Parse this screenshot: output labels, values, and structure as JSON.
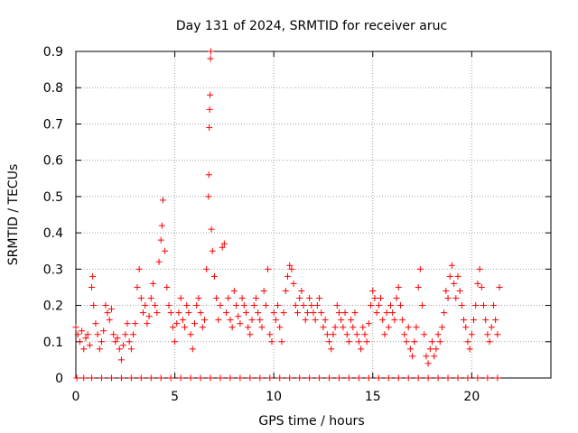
{
  "chart_data": {
    "type": "scatter",
    "title": "Day 131 of 2024, SRMTID for receiver aruc",
    "xlabel": "GPS time / hours",
    "ylabel": "SRMTID / TECUs",
    "xlim": [
      0,
      24
    ],
    "ylim": [
      0,
      0.9
    ],
    "xticks": [
      0,
      5,
      10,
      15,
      20
    ],
    "xtick_labels": [
      "0",
      "5",
      "10",
      "15",
      "20"
    ],
    "yticks": [
      0,
      0.1,
      0.2,
      0.3,
      0.4,
      0.5,
      0.6,
      0.7,
      0.8,
      0.9
    ],
    "ytick_labels": [
      "0",
      "0.1",
      "0.2",
      "0.3",
      "0.4",
      "0.5",
      "0.6",
      "0.7",
      "0.8",
      "0.9"
    ],
    "grid": true,
    "marker": "+",
    "series": [
      {
        "name": "SRMTID",
        "color": "#ff0000",
        "points": [
          [
            0.0,
            0.14
          ],
          [
            0.1,
            0.12
          ],
          [
            0.2,
            0.1
          ],
          [
            0.3,
            0.13
          ],
          [
            0.4,
            0.08
          ],
          [
            0.5,
            0.11
          ],
          [
            0.6,
            0.12
          ],
          [
            0.7,
            0.09
          ],
          [
            0.8,
            0.25
          ],
          [
            0.85,
            0.28
          ],
          [
            0.9,
            0.2
          ],
          [
            1.0,
            0.15
          ],
          [
            1.1,
            0.12
          ],
          [
            1.2,
            0.08
          ],
          [
            1.3,
            0.1
          ],
          [
            1.4,
            0.13
          ],
          [
            1.5,
            0.2
          ],
          [
            1.6,
            0.18
          ],
          [
            1.7,
            0.16
          ],
          [
            1.8,
            0.19
          ],
          [
            1.9,
            0.12
          ],
          [
            2.0,
            0.1
          ],
          [
            2.1,
            0.11
          ],
          [
            2.2,
            0.08
          ],
          [
            2.3,
            0.05
          ],
          [
            2.4,
            0.09
          ],
          [
            2.5,
            0.12
          ],
          [
            2.6,
            0.15
          ],
          [
            2.7,
            0.1
          ],
          [
            2.8,
            0.08
          ],
          [
            2.9,
            0.12
          ],
          [
            3.0,
            0.15
          ],
          [
            3.1,
            0.25
          ],
          [
            3.2,
            0.3
          ],
          [
            3.3,
            0.22
          ],
          [
            3.4,
            0.18
          ],
          [
            3.5,
            0.2
          ],
          [
            3.6,
            0.15
          ],
          [
            3.7,
            0.17
          ],
          [
            3.8,
            0.22
          ],
          [
            3.9,
            0.26
          ],
          [
            4.0,
            0.2
          ],
          [
            4.1,
            0.18
          ],
          [
            4.2,
            0.32
          ],
          [
            4.3,
            0.38
          ],
          [
            4.35,
            0.42
          ],
          [
            4.4,
            0.49
          ],
          [
            4.5,
            0.35
          ],
          [
            4.6,
            0.25
          ],
          [
            4.7,
            0.2
          ],
          [
            4.8,
            0.18
          ],
          [
            4.9,
            0.14
          ],
          [
            5.0,
            0.1
          ],
          [
            5.1,
            0.15
          ],
          [
            5.2,
            0.18
          ],
          [
            5.3,
            0.22
          ],
          [
            5.4,
            0.16
          ],
          [
            5.5,
            0.14
          ],
          [
            5.6,
            0.2
          ],
          [
            5.7,
            0.18
          ],
          [
            5.8,
            0.12
          ],
          [
            5.9,
            0.08
          ],
          [
            6.0,
            0.15
          ],
          [
            6.1,
            0.2
          ],
          [
            6.2,
            0.22
          ],
          [
            6.3,
            0.18
          ],
          [
            6.4,
            0.14
          ],
          [
            6.5,
            0.16
          ],
          [
            6.6,
            0.3
          ],
          [
            6.7,
            0.5
          ],
          [
            6.72,
            0.56
          ],
          [
            6.74,
            0.69
          ],
          [
            6.76,
            0.74
          ],
          [
            6.78,
            0.78
          ],
          [
            6.8,
            0.88
          ],
          [
            6.82,
            0.9
          ],
          [
            6.85,
            0.41
          ],
          [
            6.9,
            0.35
          ],
          [
            7.0,
            0.28
          ],
          [
            7.1,
            0.22
          ],
          [
            7.2,
            0.16
          ],
          [
            7.3,
            0.2
          ],
          [
            7.4,
            0.36
          ],
          [
            7.5,
            0.37
          ],
          [
            7.6,
            0.18
          ],
          [
            7.7,
            0.22
          ],
          [
            7.8,
            0.16
          ],
          [
            7.9,
            0.14
          ],
          [
            8.0,
            0.24
          ],
          [
            8.1,
            0.2
          ],
          [
            8.2,
            0.17
          ],
          [
            8.3,
            0.15
          ],
          [
            8.4,
            0.22
          ],
          [
            8.5,
            0.2
          ],
          [
            8.6,
            0.18
          ],
          [
            8.7,
            0.14
          ],
          [
            8.8,
            0.12
          ],
          [
            8.9,
            0.16
          ],
          [
            9.0,
            0.2
          ],
          [
            9.1,
            0.22
          ],
          [
            9.2,
            0.18
          ],
          [
            9.3,
            0.16
          ],
          [
            9.4,
            0.14
          ],
          [
            9.5,
            0.24
          ],
          [
            9.6,
            0.2
          ],
          [
            9.7,
            0.3
          ],
          [
            9.8,
            0.12
          ],
          [
            9.9,
            0.1
          ],
          [
            10.0,
            0.18
          ],
          [
            10.1,
            0.16
          ],
          [
            10.2,
            0.2
          ],
          [
            10.3,
            0.14
          ],
          [
            10.4,
            0.1
          ],
          [
            10.5,
            0.18
          ],
          [
            10.6,
            0.24
          ],
          [
            10.7,
            0.28
          ],
          [
            10.8,
            0.31
          ],
          [
            10.9,
            0.3
          ],
          [
            11.0,
            0.26
          ],
          [
            11.1,
            0.2
          ],
          [
            11.2,
            0.18
          ],
          [
            11.3,
            0.22
          ],
          [
            11.4,
            0.24
          ],
          [
            11.5,
            0.2
          ],
          [
            11.6,
            0.16
          ],
          [
            11.7,
            0.18
          ],
          [
            11.8,
            0.22
          ],
          [
            11.9,
            0.2
          ],
          [
            12.0,
            0.18
          ],
          [
            12.1,
            0.16
          ],
          [
            12.2,
            0.2
          ],
          [
            12.3,
            0.22
          ],
          [
            12.4,
            0.18
          ],
          [
            12.5,
            0.14
          ],
          [
            12.6,
            0.16
          ],
          [
            12.7,
            0.12
          ],
          [
            12.8,
            0.1
          ],
          [
            12.9,
            0.08
          ],
          [
            13.0,
            0.12
          ],
          [
            13.1,
            0.14
          ],
          [
            13.2,
            0.2
          ],
          [
            13.3,
            0.18
          ],
          [
            13.4,
            0.16
          ],
          [
            13.5,
            0.14
          ],
          [
            13.6,
            0.18
          ],
          [
            13.7,
            0.12
          ],
          [
            13.8,
            0.1
          ],
          [
            13.9,
            0.16
          ],
          [
            14.0,
            0.14
          ],
          [
            14.1,
            0.18
          ],
          [
            14.2,
            0.12
          ],
          [
            14.3,
            0.1
          ],
          [
            14.4,
            0.08
          ],
          [
            14.5,
            0.14
          ],
          [
            14.6,
            0.12
          ],
          [
            14.7,
            0.1
          ],
          [
            14.8,
            0.15
          ],
          [
            14.9,
            0.2
          ],
          [
            15.0,
            0.24
          ],
          [
            15.1,
            0.22
          ],
          [
            15.2,
            0.18
          ],
          [
            15.3,
            0.2
          ],
          [
            15.4,
            0.22
          ],
          [
            15.5,
            0.16
          ],
          [
            15.6,
            0.12
          ],
          [
            15.7,
            0.18
          ],
          [
            15.8,
            0.14
          ],
          [
            15.9,
            0.2
          ],
          [
            16.0,
            0.18
          ],
          [
            16.1,
            0.16
          ],
          [
            16.2,
            0.22
          ],
          [
            16.3,
            0.25
          ],
          [
            16.4,
            0.2
          ],
          [
            16.5,
            0.16
          ],
          [
            16.6,
            0.12
          ],
          [
            16.7,
            0.1
          ],
          [
            16.8,
            0.14
          ],
          [
            16.9,
            0.08
          ],
          [
            17.0,
            0.06
          ],
          [
            17.1,
            0.1
          ],
          [
            17.2,
            0.14
          ],
          [
            17.3,
            0.25
          ],
          [
            17.4,
            0.3
          ],
          [
            17.5,
            0.2
          ],
          [
            17.6,
            0.12
          ],
          [
            17.7,
            0.06
          ],
          [
            17.8,
            0.04
          ],
          [
            17.9,
            0.08
          ],
          [
            18.0,
            0.1
          ],
          [
            18.1,
            0.06
          ],
          [
            18.2,
            0.08
          ],
          [
            18.3,
            0.12
          ],
          [
            18.4,
            0.1
          ],
          [
            18.5,
            0.14
          ],
          [
            18.6,
            0.18
          ],
          [
            18.7,
            0.24
          ],
          [
            18.8,
            0.22
          ],
          [
            18.9,
            0.28
          ],
          [
            19.0,
            0.31
          ],
          [
            19.1,
            0.26
          ],
          [
            19.2,
            0.22
          ],
          [
            19.3,
            0.28
          ],
          [
            19.4,
            0.24
          ],
          [
            19.5,
            0.2
          ],
          [
            19.6,
            0.16
          ],
          [
            19.7,
            0.14
          ],
          [
            19.8,
            0.1
          ],
          [
            19.9,
            0.08
          ],
          [
            20.0,
            0.12
          ],
          [
            20.1,
            0.16
          ],
          [
            20.2,
            0.2
          ],
          [
            20.3,
            0.26
          ],
          [
            20.4,
            0.3
          ],
          [
            20.5,
            0.25
          ],
          [
            20.6,
            0.2
          ],
          [
            20.7,
            0.16
          ],
          [
            20.8,
            0.12
          ],
          [
            20.9,
            0.1
          ],
          [
            21.0,
            0.14
          ],
          [
            21.1,
            0.2
          ],
          [
            21.2,
            0.16
          ],
          [
            21.3,
            0.12
          ],
          [
            21.4,
            0.25
          ],
          [
            0.05,
            0.0
          ],
          [
            0.4,
            0.0
          ],
          [
            0.8,
            0.0
          ],
          [
            1.3,
            0.0
          ],
          [
            1.8,
            0.0
          ],
          [
            2.3,
            0.0
          ],
          [
            2.8,
            0.0
          ],
          [
            3.3,
            0.0
          ],
          [
            3.8,
            0.0
          ],
          [
            4.3,
            0.0
          ],
          [
            4.8,
            0.0
          ],
          [
            5.3,
            0.0
          ],
          [
            5.8,
            0.0
          ],
          [
            6.3,
            0.0
          ],
          [
            6.8,
            0.0
          ],
          [
            7.3,
            0.0
          ],
          [
            7.8,
            0.0
          ],
          [
            8.3,
            0.0
          ],
          [
            8.8,
            0.0
          ],
          [
            9.3,
            0.0
          ],
          [
            9.8,
            0.0
          ],
          [
            10.3,
            0.0
          ],
          [
            10.8,
            0.0
          ],
          [
            11.3,
            0.0
          ],
          [
            11.8,
            0.0
          ],
          [
            12.3,
            0.0
          ],
          [
            12.8,
            0.0
          ],
          [
            13.3,
            0.0
          ],
          [
            13.8,
            0.0
          ],
          [
            14.3,
            0.0
          ],
          [
            14.8,
            0.0
          ],
          [
            15.3,
            0.0
          ],
          [
            15.8,
            0.0
          ],
          [
            16.3,
            0.0
          ],
          [
            16.8,
            0.0
          ],
          [
            17.3,
            0.0
          ],
          [
            17.8,
            0.0
          ],
          [
            18.3,
            0.0
          ],
          [
            18.8,
            0.0
          ],
          [
            19.3,
            0.0
          ],
          [
            19.8,
            0.0
          ],
          [
            20.3,
            0.0
          ],
          [
            20.8,
            0.0
          ],
          [
            21.3,
            0.0
          ]
        ]
      }
    ]
  }
}
